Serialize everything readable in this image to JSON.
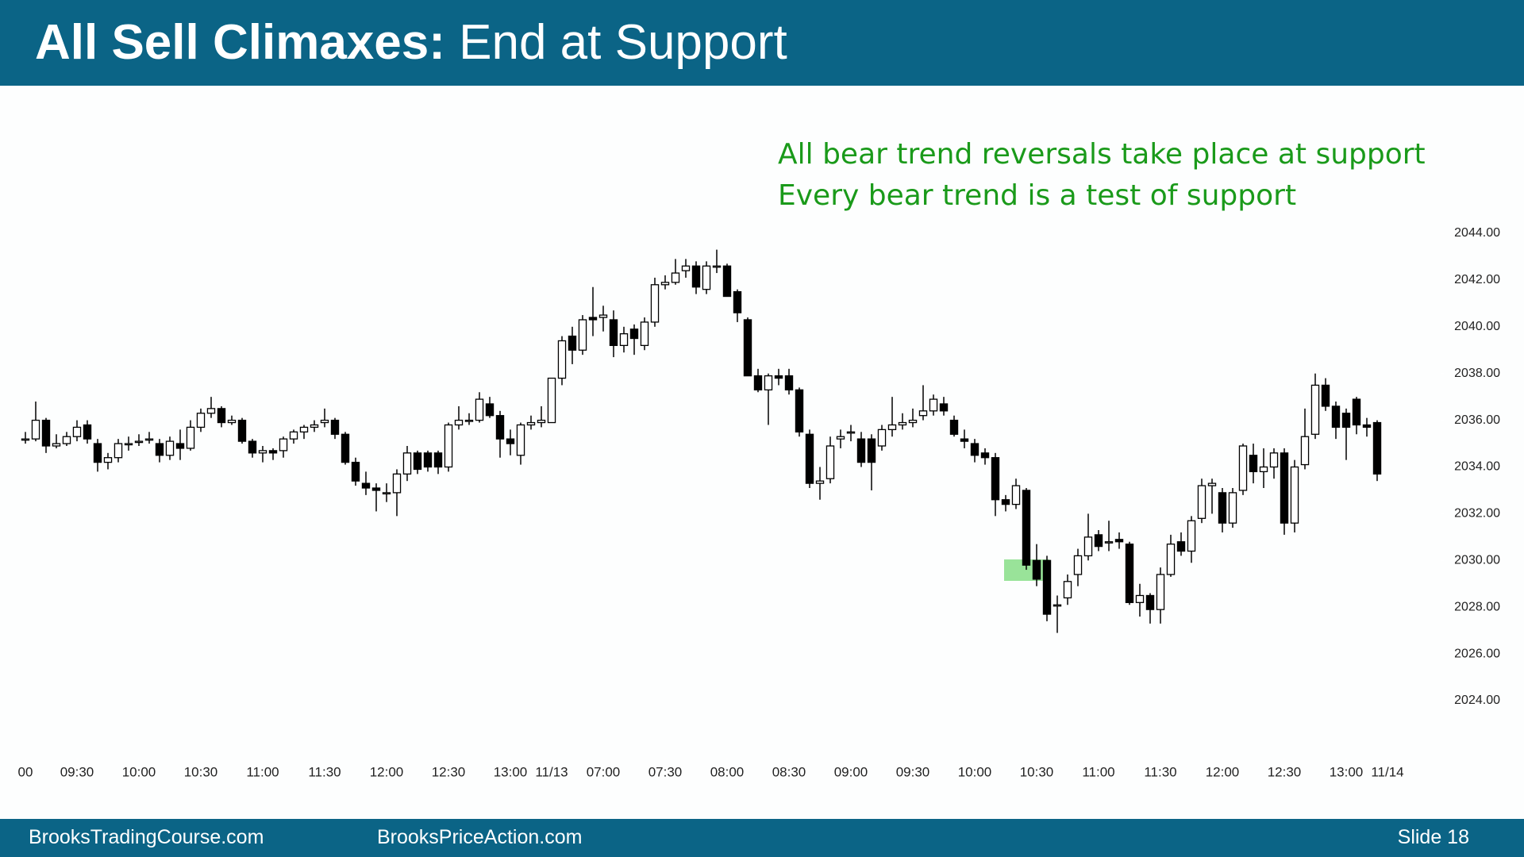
{
  "header": {
    "title_bold": "All Sell Climaxes:",
    "title_rest": "End at Support"
  },
  "annotations": [
    "All bear trend reversals take place at support",
    "Every bear trend is a test of support"
  ],
  "footer": {
    "left": "BrooksTradingCourse.com",
    "middle": "BrooksPriceAction.com",
    "slide": "Slide  18"
  },
  "chart_data": {
    "type": "candlestick",
    "up_color": "#ffffff",
    "down_color": "#000000",
    "ylim": [
      2024,
      2044
    ],
    "yticks": [
      {
        "value": 2024,
        "label": "2024.00"
      },
      {
        "value": 2026,
        "label": "2026.00"
      },
      {
        "value": 2028,
        "label": "2028.00"
      },
      {
        "value": 2030,
        "label": "2030.00"
      },
      {
        "value": 2032,
        "label": "2032.00"
      },
      {
        "value": 2034,
        "label": "2034.00"
      },
      {
        "value": 2036,
        "label": "2036.00"
      },
      {
        "value": 2038,
        "label": "2038.00"
      },
      {
        "value": 2040,
        "label": "2040.00"
      },
      {
        "value": 2042,
        "label": "2042.00"
      },
      {
        "value": 2044,
        "label": "2044.00"
      }
    ],
    "xlim": [
      0,
      131
    ],
    "xticks": [
      {
        "value": 0,
        "label": "00"
      },
      {
        "value": 5,
        "label": "09:30"
      },
      {
        "value": 11,
        "label": "10:00"
      },
      {
        "value": 17,
        "label": "10:30"
      },
      {
        "value": 23,
        "label": "11:00"
      },
      {
        "value": 29,
        "label": "11:30"
      },
      {
        "value": 35,
        "label": "12:00"
      },
      {
        "value": 41,
        "label": "12:30"
      },
      {
        "value": 47,
        "label": "13:00"
      },
      {
        "value": 51,
        "label": "11/13"
      },
      {
        "value": 56,
        "label": "07:00"
      },
      {
        "value": 62,
        "label": "07:30"
      },
      {
        "value": 68,
        "label": "08:00"
      },
      {
        "value": 74,
        "label": "08:30"
      },
      {
        "value": 80,
        "label": "09:00"
      },
      {
        "value": 86,
        "label": "09:30"
      },
      {
        "value": 92,
        "label": "10:00"
      },
      {
        "value": 98,
        "label": "10:30"
      },
      {
        "value": 104,
        "label": "11:00"
      },
      {
        "value": 110,
        "label": "11:30"
      },
      {
        "value": 116,
        "label": "12:00"
      },
      {
        "value": 122,
        "label": "12:30"
      },
      {
        "value": 128,
        "label": "13:00"
      },
      {
        "value": 132,
        "label": "11/14"
      }
    ],
    "candles": [
      [
        2035.2,
        2035.5,
        2035.0,
        2035.2
      ],
      [
        2035.2,
        2036.8,
        2035.1,
        2036.0
      ],
      [
        2036.0,
        2036.1,
        2034.6,
        2034.9
      ],
      [
        2034.9,
        2035.4,
        2034.8,
        2035.0
      ],
      [
        2035.0,
        2035.5,
        2034.9,
        2035.3
      ],
      [
        2035.3,
        2036.0,
        2035.1,
        2035.7
      ],
      [
        2035.8,
        2036.0,
        2035.0,
        2035.2
      ],
      [
        2035.0,
        2035.2,
        2033.8,
        2034.2
      ],
      [
        2034.2,
        2034.6,
        2033.9,
        2034.4
      ],
      [
        2034.4,
        2035.2,
        2034.2,
        2035.0
      ],
      [
        2035.0,
        2035.3,
        2034.7,
        2035.0
      ],
      [
        2035.1,
        2035.4,
        2034.9,
        2035.1
      ],
      [
        2035.2,
        2035.5,
        2035.0,
        2035.2
      ],
      [
        2035.0,
        2035.2,
        2034.2,
        2034.5
      ],
      [
        2034.5,
        2035.3,
        2034.3,
        2035.1
      ],
      [
        2035.0,
        2035.6,
        2034.3,
        2034.8
      ],
      [
        2034.8,
        2036.0,
        2034.7,
        2035.7
      ],
      [
        2035.7,
        2036.5,
        2035.5,
        2036.3
      ],
      [
        2036.3,
        2037.0,
        2036.1,
        2036.5
      ],
      [
        2036.5,
        2036.6,
        2035.7,
        2035.9
      ],
      [
        2035.9,
        2036.2,
        2035.8,
        2036.0
      ],
      [
        2036.0,
        2036.1,
        2035.0,
        2035.1
      ],
      [
        2035.1,
        2035.2,
        2034.4,
        2034.6
      ],
      [
        2034.6,
        2034.9,
        2034.2,
        2034.7
      ],
      [
        2034.7,
        2034.8,
        2034.3,
        2034.6
      ],
      [
        2034.7,
        2035.3,
        2034.4,
        2035.2
      ],
      [
        2035.2,
        2035.6,
        2035.0,
        2035.5
      ],
      [
        2035.5,
        2035.8,
        2035.2,
        2035.7
      ],
      [
        2035.7,
        2036.0,
        2035.5,
        2035.8
      ],
      [
        2035.9,
        2036.5,
        2035.7,
        2036.0
      ],
      [
        2036.0,
        2036.1,
        2035.2,
        2035.4
      ],
      [
        2035.4,
        2035.5,
        2034.1,
        2034.2
      ],
      [
        2034.2,
        2034.4,
        2033.2,
        2033.4
      ],
      [
        2033.3,
        2033.8,
        2032.8,
        2033.1
      ],
      [
        2033.1,
        2033.3,
        2032.1,
        2033.0
      ],
      [
        2032.9,
        2033.3,
        2032.5,
        2032.9
      ],
      [
        2032.9,
        2033.9,
        2031.9,
        2033.7
      ],
      [
        2033.7,
        2034.9,
        2033.4,
        2034.6
      ],
      [
        2034.6,
        2034.7,
        2033.7,
        2033.9
      ],
      [
        2034.6,
        2034.7,
        2033.8,
        2034.0
      ],
      [
        2034.6,
        2034.7,
        2033.7,
        2034.0
      ],
      [
        2034.0,
        2035.9,
        2033.8,
        2035.8
      ],
      [
        2035.8,
        2036.6,
        2035.6,
        2036.0
      ],
      [
        2036.0,
        2036.3,
        2035.8,
        2036.0
      ],
      [
        2036.0,
        2037.2,
        2035.9,
        2036.9
      ],
      [
        2036.7,
        2037.0,
        2036.1,
        2036.2
      ],
      [
        2036.2,
        2036.4,
        2034.4,
        2035.2
      ],
      [
        2035.2,
        2035.6,
        2034.5,
        2035.0
      ],
      [
        2034.5,
        2035.9,
        2034.1,
        2035.8
      ],
      [
        2035.8,
        2036.2,
        2035.6,
        2035.9
      ],
      [
        2035.9,
        2036.6,
        2035.7,
        2036.0
      ],
      [
        2035.9,
        2037.8,
        2035.9,
        2037.8
      ],
      [
        2037.8,
        2039.6,
        2037.5,
        2039.4
      ],
      [
        2039.6,
        2040.0,
        2038.4,
        2039.0
      ],
      [
        2039.0,
        2040.5,
        2038.8,
        2040.3
      ],
      [
        2040.4,
        2041.7,
        2039.6,
        2040.3
      ],
      [
        2040.4,
        2040.9,
        2039.8,
        2040.5
      ],
      [
        2040.3,
        2040.7,
        2038.7,
        2039.2
      ],
      [
        2039.2,
        2040.0,
        2038.9,
        2039.7
      ],
      [
        2039.9,
        2040.1,
        2038.8,
        2039.5
      ],
      [
        2039.2,
        2040.4,
        2039.0,
        2040.2
      ],
      [
        2040.2,
        2042.1,
        2040.0,
        2041.8
      ],
      [
        2041.8,
        2042.2,
        2041.6,
        2041.9
      ],
      [
        2041.9,
        2042.9,
        2041.8,
        2042.3
      ],
      [
        2042.4,
        2042.9,
        2042.1,
        2042.6
      ],
      [
        2042.6,
        2042.8,
        2041.4,
        2041.7
      ],
      [
        2041.6,
        2042.8,
        2041.4,
        2042.6
      ],
      [
        2042.6,
        2043.3,
        2042.3,
        2042.6
      ],
      [
        2042.6,
        2042.7,
        2041.3,
        2041.3
      ],
      [
        2041.5,
        2041.6,
        2040.2,
        2040.6
      ],
      [
        2040.3,
        2040.4,
        2037.9,
        2037.9
      ],
      [
        2037.9,
        2038.2,
        2037.2,
        2037.3
      ],
      [
        2037.3,
        2038.0,
        2035.8,
        2037.9
      ],
      [
        2037.9,
        2038.2,
        2037.5,
        2037.8
      ],
      [
        2037.9,
        2038.2,
        2037.1,
        2037.3
      ],
      [
        2037.3,
        2037.4,
        2035.3,
        2035.5
      ],
      [
        2035.4,
        2035.6,
        2033.1,
        2033.3
      ],
      [
        2033.3,
        2034.0,
        2032.6,
        2033.4
      ],
      [
        2033.5,
        2035.3,
        2033.3,
        2034.9
      ],
      [
        2035.2,
        2035.6,
        2034.8,
        2035.3
      ],
      [
        2035.5,
        2035.8,
        2035.1,
        2035.5
      ],
      [
        2035.2,
        2035.5,
        2034.0,
        2034.2
      ],
      [
        2035.2,
        2035.4,
        2033.0,
        2034.2
      ],
      [
        2034.9,
        2035.8,
        2034.7,
        2035.6
      ],
      [
        2035.6,
        2037.0,
        2035.3,
        2035.8
      ],
      [
        2035.8,
        2036.3,
        2035.6,
        2035.9
      ],
      [
        2035.9,
        2036.5,
        2035.7,
        2036.0
      ],
      [
        2036.2,
        2037.5,
        2036.0,
        2036.4
      ],
      [
        2036.4,
        2037.1,
        2036.2,
        2036.9
      ],
      [
        2036.7,
        2037.0,
        2036.2,
        2036.4
      ],
      [
        2036.0,
        2036.2,
        2035.3,
        2035.4
      ],
      [
        2035.2,
        2035.6,
        2034.8,
        2035.1
      ],
      [
        2035.0,
        2035.2,
        2034.2,
        2034.5
      ],
      [
        2034.6,
        2034.8,
        2034.1,
        2034.4
      ],
      [
        2034.4,
        2034.6,
        2031.9,
        2032.6
      ],
      [
        2032.6,
        2032.8,
        2032.1,
        2032.4
      ],
      [
        2032.4,
        2033.5,
        2032.2,
        2033.2
      ],
      [
        2033.0,
        2033.1,
        2029.6,
        2029.8
      ],
      [
        2030.0,
        2030.7,
        2028.9,
        2029.2
      ],
      [
        2030.0,
        2030.2,
        2027.4,
        2027.7
      ],
      [
        2028.1,
        2028.5,
        2026.9,
        2028.1
      ],
      [
        2028.4,
        2029.4,
        2028.1,
        2029.1
      ],
      [
        2029.4,
        2030.5,
        2028.9,
        2030.2
      ],
      [
        2030.2,
        2032.0,
        2030.0,
        2031.0
      ],
      [
        2031.1,
        2031.3,
        2030.4,
        2030.6
      ],
      [
        2030.8,
        2031.7,
        2030.4,
        2030.8
      ],
      [
        2030.9,
        2031.2,
        2030.5,
        2030.8
      ],
      [
        2030.7,
        2030.8,
        2028.1,
        2028.2
      ],
      [
        2028.2,
        2029.0,
        2027.6,
        2028.5
      ],
      [
        2028.5,
        2028.6,
        2027.3,
        2027.9
      ],
      [
        2027.9,
        2029.7,
        2027.3,
        2029.4
      ],
      [
        2029.4,
        2031.1,
        2029.3,
        2030.7
      ],
      [
        2030.8,
        2031.2,
        2030.2,
        2030.4
      ],
      [
        2030.4,
        2031.9,
        2029.9,
        2031.7
      ],
      [
        2031.8,
        2033.5,
        2031.6,
        2033.2
      ],
      [
        2033.2,
        2033.5,
        2032.0,
        2033.3
      ],
      [
        2032.9,
        2033.1,
        2031.2,
        2031.6
      ],
      [
        2031.6,
        2033.1,
        2031.4,
        2032.9
      ],
      [
        2033.0,
        2035.0,
        2032.8,
        2034.9
      ],
      [
        2034.5,
        2035.0,
        2033.3,
        2033.8
      ],
      [
        2033.8,
        2034.8,
        2033.1,
        2034.0
      ],
      [
        2034.0,
        2034.8,
        2033.5,
        2034.6
      ],
      [
        2034.6,
        2034.8,
        2031.1,
        2031.6
      ],
      [
        2031.6,
        2034.3,
        2031.2,
        2034.0
      ],
      [
        2034.1,
        2036.5,
        2033.9,
        2035.3
      ],
      [
        2035.4,
        2038.0,
        2035.2,
        2037.5
      ],
      [
        2037.5,
        2037.8,
        2036.4,
        2036.6
      ],
      [
        2036.6,
        2036.8,
        2035.2,
        2035.7
      ],
      [
        2036.3,
        2036.5,
        2034.3,
        2035.7
      ],
      [
        2036.9,
        2037.0,
        2035.4,
        2035.8
      ],
      [
        2035.8,
        2036.1,
        2035.3,
        2035.7
      ],
      [
        2035.9,
        2036.0,
        2033.4,
        2033.7
      ]
    ]
  }
}
